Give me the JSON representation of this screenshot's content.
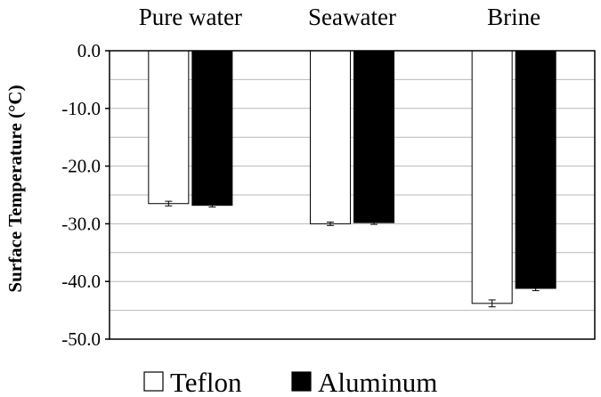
{
  "chart_data": {
    "type": "bar",
    "title": "",
    "xlabel": "",
    "ylabel": "Surface Temperature (°C)",
    "categories": [
      "Pure water",
      "Seawater",
      "Brine"
    ],
    "category_axis_position": "top",
    "ylim": [
      -50,
      0
    ],
    "yticks": [
      "0.0",
      "-10.0",
      "-20.0",
      "-30.0",
      "-40.0",
      "-50.0"
    ],
    "ytick_values": [
      0,
      -10,
      -20,
      -30,
      -40,
      -50
    ],
    "grid": true,
    "legend": "bottom",
    "series": [
      {
        "name": "Teflon",
        "values": [
          -26.5,
          -30.0,
          -43.8
        ],
        "errors": [
          0.4,
          0.3,
          0.6
        ],
        "fill": "#ffffff",
        "stroke": "#000000"
      },
      {
        "name": "Aluminum",
        "values": [
          -26.8,
          -29.8,
          -41.2
        ],
        "errors": [
          0.3,
          0.3,
          0.4
        ],
        "fill": "#000000",
        "stroke": "#000000"
      }
    ]
  }
}
